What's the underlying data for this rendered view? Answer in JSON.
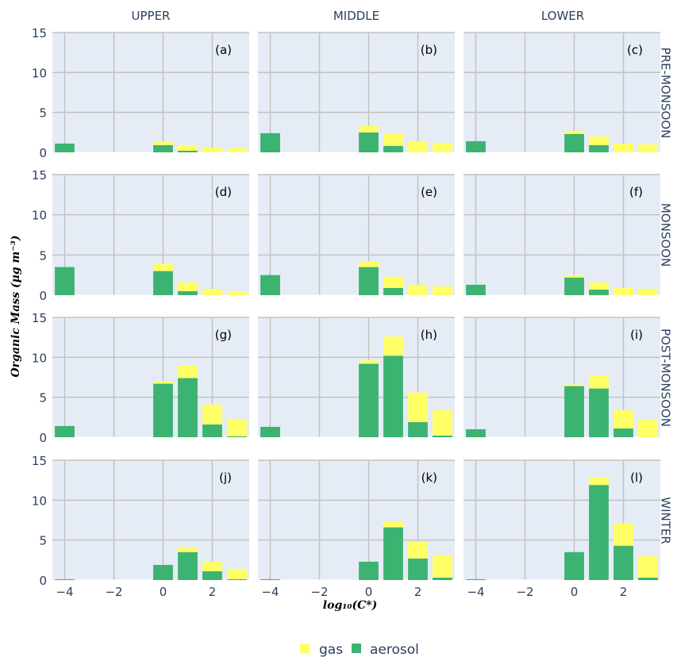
{
  "chart_data": {
    "type": "bar",
    "barmode": "stack",
    "x_label": "log₁₀(C*)",
    "y_label": "Organic Mass (μg m⁻³)",
    "x_ticks": [
      -4,
      -2,
      0,
      2
    ],
    "y_ticks": [
      0,
      5,
      10,
      15
    ],
    "xlim": [
      -4.5,
      3.5
    ],
    "ylim": [
      0,
      15
    ],
    "columns": [
      "UPPER",
      "MIDDLE",
      "LOWER"
    ],
    "rows": [
      "PRE-MONSOON",
      "MONSOON",
      "POST-MONSOON",
      "WINTER"
    ],
    "x": [
      -4,
      -3,
      -2,
      -1,
      0,
      1,
      2,
      3
    ],
    "legend": [
      "gas",
      "aerosol"
    ],
    "legend_position": "bottom-center",
    "colors": {
      "gas": "#ffff66",
      "aerosol": "#3cb371",
      "plot_bg": "#e5ecf6",
      "grid": "#c2c2c2",
      "text": "#2a3f5f"
    },
    "panels": [
      {
        "label": "(a)",
        "row": "PRE-MONSOON",
        "column": "UPPER",
        "aerosol": [
          1.1,
          0,
          0,
          0,
          0.9,
          0.2,
          0,
          0
        ],
        "gas": [
          0,
          0,
          0,
          0,
          0.4,
          0.7,
          0.6,
          0.5
        ]
      },
      {
        "label": "(b)",
        "row": "PRE-MONSOON",
        "column": "MIDDLE",
        "aerosol": [
          2.4,
          0,
          0,
          0,
          2.5,
          0.8,
          0,
          0
        ],
        "gas": [
          0,
          0,
          0,
          0,
          0.8,
          1.5,
          1.4,
          1.2
        ]
      },
      {
        "label": "(c)",
        "row": "PRE-MONSOON",
        "column": "LOWER",
        "aerosol": [
          1.4,
          0,
          0,
          0,
          2.3,
          0.9,
          0,
          0
        ],
        "gas": [
          0,
          0,
          0,
          0,
          0.4,
          1.1,
          1.1,
          1.0
        ]
      },
      {
        "label": "(d)",
        "row": "MONSOON",
        "column": "UPPER",
        "aerosol": [
          3.5,
          0,
          0,
          0,
          3.0,
          0.5,
          0,
          0
        ],
        "gas": [
          0,
          0,
          0,
          0,
          0.9,
          1.1,
          0.8,
          0.5
        ]
      },
      {
        "label": "(e)",
        "row": "MONSOON",
        "column": "MIDDLE",
        "aerosol": [
          2.5,
          0,
          0,
          0,
          3.5,
          0.9,
          0,
          0
        ],
        "gas": [
          0,
          0,
          0,
          0,
          0.7,
          1.4,
          1.3,
          1.1
        ]
      },
      {
        "label": "(f)",
        "row": "MONSOON",
        "column": "LOWER",
        "aerosol": [
          1.3,
          0,
          0,
          0,
          2.2,
          0.7,
          0,
          0
        ],
        "gas": [
          0,
          0,
          0,
          0,
          0.3,
          0.9,
          0.9,
          0.8
        ]
      },
      {
        "label": "(g)",
        "row": "POST-MONSOON",
        "column": "UPPER",
        "aerosol": [
          1.4,
          0,
          0,
          0,
          6.7,
          7.4,
          1.6,
          0.1
        ],
        "gas": [
          0,
          0,
          0,
          0,
          0.3,
          1.6,
          2.5,
          2.2
        ]
      },
      {
        "label": "(h)",
        "row": "POST-MONSOON",
        "column": "MIDDLE",
        "aerosol": [
          1.3,
          0,
          0,
          0,
          9.2,
          10.2,
          1.9,
          0.2
        ],
        "gas": [
          0,
          0,
          0,
          0,
          0.4,
          2.4,
          3.7,
          3.2
        ]
      },
      {
        "label": "(i)",
        "row": "POST-MONSOON",
        "column": "LOWER",
        "aerosol": [
          1.0,
          0,
          0,
          0,
          6.4,
          6.1,
          1.1,
          0
        ],
        "gas": [
          0,
          0,
          0,
          0,
          0.2,
          1.6,
          2.3,
          2.2
        ]
      },
      {
        "label": "(j)",
        "row": "WINTER",
        "column": "UPPER",
        "aerosol": [
          0.1,
          0,
          0,
          0,
          1.9,
          3.5,
          1.1,
          0.1
        ],
        "gas": [
          0,
          0,
          0,
          0,
          0,
          0.6,
          1.2,
          1.3
        ]
      },
      {
        "label": "(k)",
        "row": "WINTER",
        "column": "MIDDLE",
        "aerosol": [
          0.1,
          0,
          0,
          0,
          2.3,
          6.6,
          2.7,
          0.3
        ],
        "gas": [
          0,
          0,
          0,
          0,
          0,
          0.7,
          2.1,
          2.8
        ]
      },
      {
        "label": "(l)",
        "row": "WINTER",
        "column": "LOWER",
        "aerosol": [
          0.1,
          0,
          0,
          0,
          3.5,
          11.9,
          4.3,
          0.3
        ],
        "gas": [
          0,
          0,
          0,
          0,
          0,
          1.0,
          2.8,
          2.7
        ]
      }
    ]
  }
}
